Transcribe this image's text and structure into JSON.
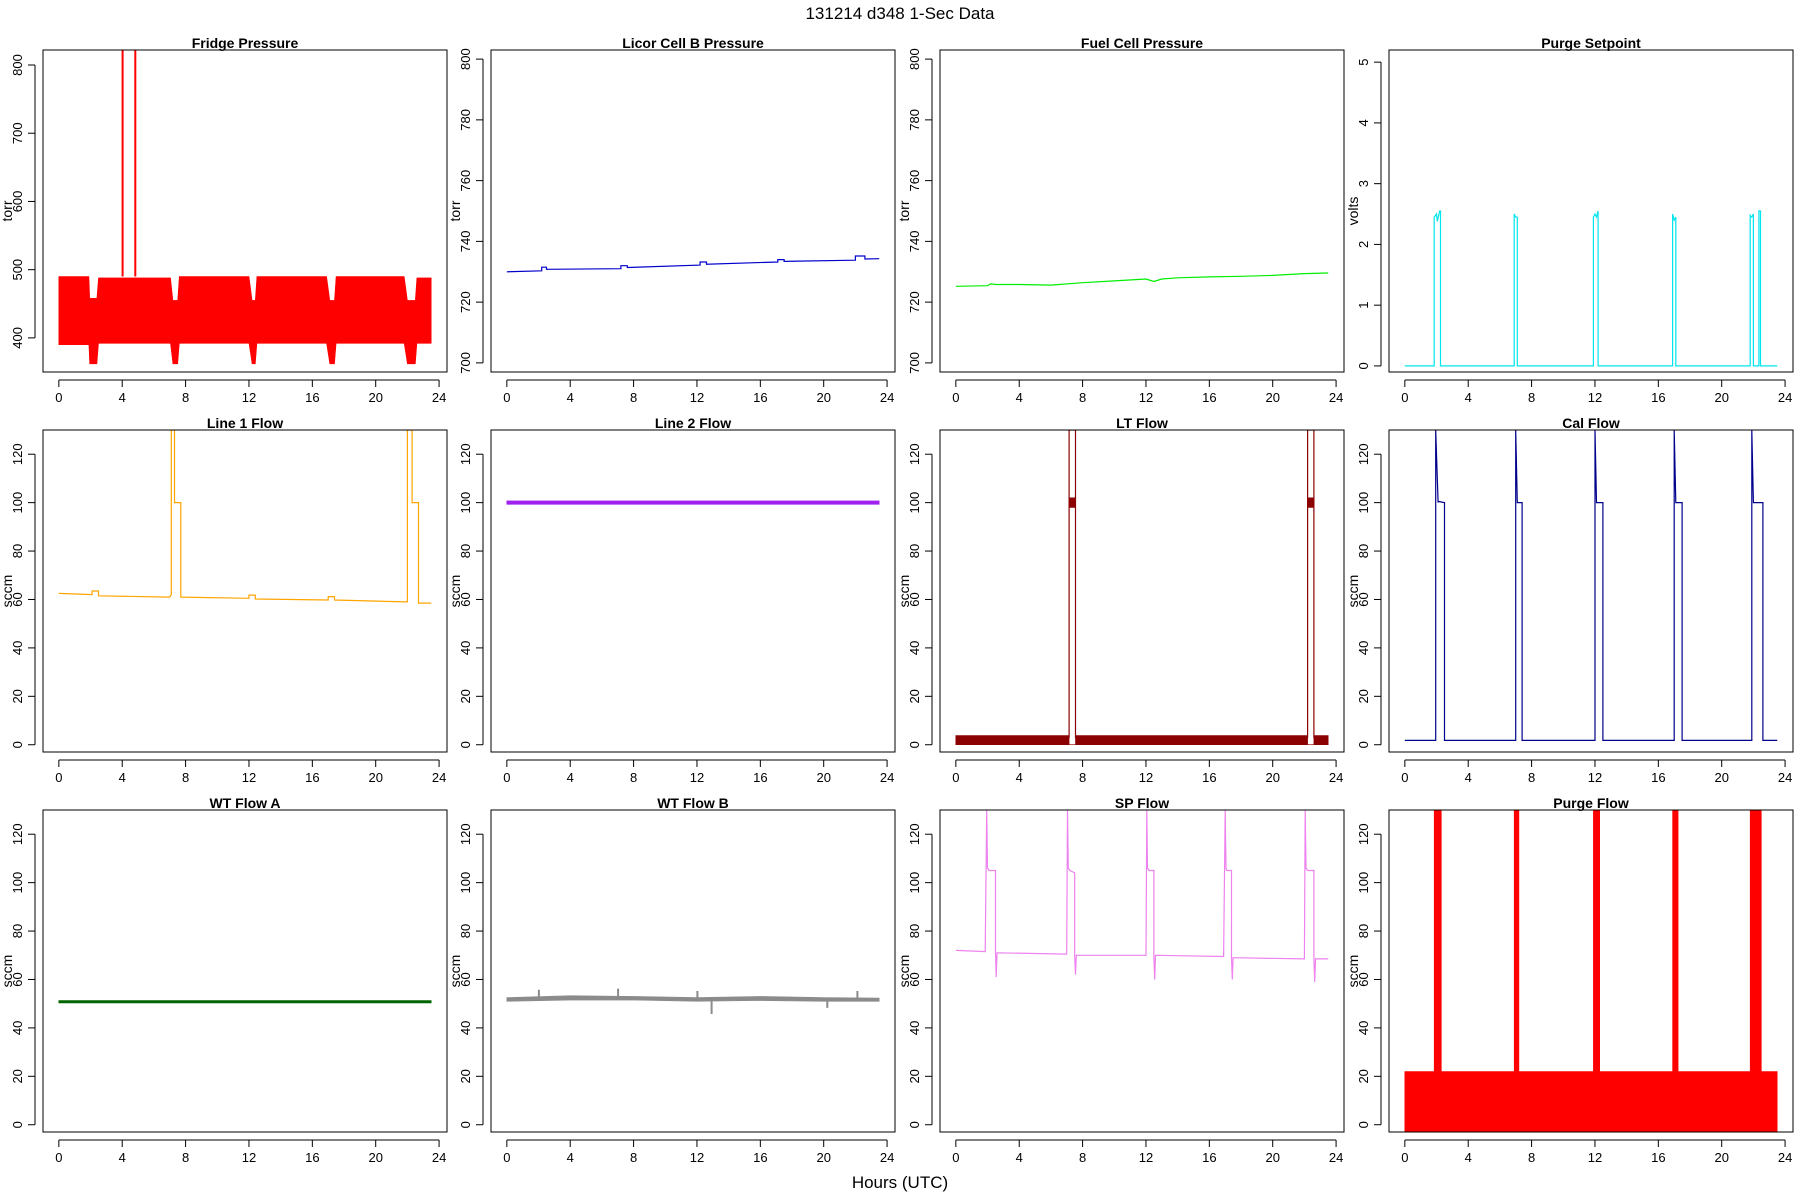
{
  "figure": {
    "title": "131214   d348   1-Sec Data",
    "xlabel": "Hours (UTC)"
  },
  "chart_data": [
    {
      "type": "line",
      "title": "Fridge Pressure",
      "ylabel": "torr",
      "color": "#ff0000",
      "xlim": [
        -1,
        24.5
      ],
      "ylim": [
        350,
        822
      ],
      "xticks": [
        0,
        4,
        8,
        12,
        16,
        20,
        24
      ],
      "yticks": [
        400,
        500,
        600,
        700,
        800
      ],
      "series": [
        {
          "style": "band",
          "x": [
            0.0,
            1.9,
            1.95,
            2.4,
            2.5,
            7.05,
            7.2,
            7.5,
            7.6,
            12.0,
            12.2,
            12.4,
            12.5,
            16.9,
            17.1,
            17.4,
            17.5,
            21.8,
            22.0,
            22.5,
            22.6,
            23.5
          ],
          "low": [
            390,
            390,
            362,
            362,
            392,
            392,
            362,
            362,
            392,
            392,
            362,
            362,
            392,
            392,
            362,
            362,
            392,
            392,
            362,
            362,
            392,
            392
          ],
          "high": [
            490,
            490,
            458,
            458,
            488,
            488,
            455,
            455,
            490,
            490,
            455,
            455,
            490,
            490,
            455,
            455,
            490,
            490,
            455,
            455,
            488,
            488
          ]
        },
        {
          "style": "line",
          "x": [
            4.0,
            4.0,
            4.05,
            4.05
          ],
          "y": [
            490,
            830,
            830,
            490
          ]
        },
        {
          "style": "line",
          "x": [
            4.8,
            4.8,
            4.85,
            4.85
          ],
          "y": [
            490,
            828,
            828,
            490
          ]
        }
      ]
    },
    {
      "type": "line",
      "title": "Licor Cell B Pressure",
      "ylabel": "torr",
      "color": "#0000cd",
      "xlim": [
        -1,
        24.5
      ],
      "ylim": [
        697,
        803
      ],
      "xticks": [
        0,
        4,
        8,
        12,
        16,
        20,
        24
      ],
      "yticks": [
        700,
        720,
        740,
        760,
        780,
        800
      ],
      "series": [
        {
          "style": "line",
          "x": [
            0,
            2.2,
            2.2,
            2.5,
            2.5,
            7.2,
            7.2,
            7.6,
            7.6,
            12.2,
            12.2,
            12.6,
            12.6,
            17.1,
            17.1,
            17.5,
            17.5,
            22.0,
            22.0,
            22.6,
            22.6,
            23.5
          ],
          "y": [
            730,
            730.3,
            731.5,
            731.5,
            730.8,
            731.0,
            732.0,
            732.0,
            731.4,
            732.2,
            733.2,
            733.2,
            732.5,
            733.2,
            734.0,
            734.0,
            733.4,
            733.8,
            735.2,
            735.2,
            734.2,
            734.3
          ]
        }
      ]
    },
    {
      "type": "line",
      "title": "Fuel Cell Pressure",
      "ylabel": "torr",
      "color": "#00ee00",
      "xlim": [
        -1,
        24.5
      ],
      "ylim": [
        697,
        803
      ],
      "xticks": [
        0,
        4,
        8,
        12,
        16,
        20,
        24
      ],
      "yticks": [
        700,
        720,
        740,
        760,
        780,
        800
      ],
      "series": [
        {
          "style": "line",
          "x": [
            0,
            2,
            2.2,
            2.5,
            4,
            6,
            8,
            10,
            12,
            12.5,
            13,
            14,
            16,
            18,
            20,
            22,
            23.5
          ],
          "y": [
            725.2,
            725.4,
            726.0,
            725.8,
            725.8,
            725.6,
            726.4,
            727.0,
            727.6,
            726.8,
            727.6,
            728.0,
            728.3,
            728.5,
            728.8,
            729.4,
            729.6
          ]
        }
      ]
    },
    {
      "type": "line",
      "title": "Purge Setpoint",
      "ylabel": "volts",
      "color": "#00e5ee",
      "xlim": [
        -1,
        24.5
      ],
      "ylim": [
        -0.1,
        5.2
      ],
      "xticks": [
        0,
        4,
        8,
        12,
        16,
        20,
        24
      ],
      "yticks": [
        0,
        1,
        2,
        3,
        4,
        5
      ],
      "series": [
        {
          "style": "line",
          "x": [
            0,
            1.85,
            1.85,
            2.0,
            2.05,
            2.2,
            2.25,
            2.25,
            6.9,
            6.9,
            7.0,
            7.1,
            7.1,
            11.9,
            11.9,
            12.0,
            12.1,
            12.2,
            12.2,
            16.9,
            16.9,
            17.0,
            17.1,
            17.1,
            21.8,
            21.8,
            21.9,
            22.0,
            22.0,
            22.35,
            22.35,
            22.45,
            22.45,
            23.5
          ],
          "y": [
            0,
            0,
            2.45,
            2.5,
            2.38,
            2.55,
            2.55,
            0,
            0,
            2.5,
            2.45,
            2.45,
            0,
            0,
            2.45,
            2.5,
            2.45,
            2.55,
            0,
            0,
            2.5,
            2.4,
            2.45,
            0,
            0,
            2.48,
            2.45,
            2.5,
            0,
            0,
            2.55,
            2.55,
            0,
            0
          ]
        }
      ]
    },
    {
      "type": "line",
      "title": "Line 1 Flow",
      "ylabel": "sccm",
      "color": "#ffa500",
      "xlim": [
        -1,
        24.5
      ],
      "ylim": [
        -3,
        130
      ],
      "xticks": [
        0,
        4,
        8,
        12,
        16,
        20,
        24
      ],
      "yticks": [
        0,
        20,
        40,
        60,
        80,
        100,
        120
      ],
      "series": [
        {
          "style": "line",
          "x": [
            0,
            2.1,
            2.1,
            2.5,
            2.5,
            7.0,
            7.1,
            7.1,
            7.3,
            7.3,
            7.7,
            7.7,
            12.0,
            12.0,
            12.4,
            12.4,
            17.0,
            17.0,
            17.4,
            17.4,
            21.9,
            22.0,
            22.0,
            22.3,
            22.3,
            22.7,
            22.7,
            23.5
          ],
          "y": [
            62.5,
            62.0,
            63.5,
            63.5,
            61.5,
            61.0,
            62.0,
            130,
            130,
            100,
            100,
            61.0,
            60.5,
            61.8,
            61.8,
            60.2,
            59.8,
            61.2,
            61.2,
            59.8,
            59.0,
            59.0,
            130,
            130,
            100,
            100,
            58.5,
            58.5
          ]
        }
      ]
    },
    {
      "type": "line",
      "title": "Line 2 Flow",
      "ylabel": "sccm",
      "color": "#a020f0",
      "xlim": [
        -1,
        24.5
      ],
      "ylim": [
        -3,
        130
      ],
      "xticks": [
        0,
        4,
        8,
        12,
        16,
        20,
        24
      ],
      "yticks": [
        0,
        20,
        40,
        60,
        80,
        100,
        120
      ],
      "series": [
        {
          "style": "band",
          "x": [
            0,
            23.5
          ],
          "low": [
            99.3,
            99.3
          ],
          "high": [
            100.7,
            100.7
          ]
        }
      ]
    },
    {
      "type": "line",
      "title": "LT Flow",
      "ylabel": "sccm",
      "color": "#8b0000",
      "xlim": [
        -1,
        24.5
      ],
      "ylim": [
        -3,
        130
      ],
      "xticks": [
        0,
        4,
        8,
        12,
        16,
        20,
        24
      ],
      "yticks": [
        0,
        20,
        40,
        60,
        80,
        100,
        120
      ],
      "series": [
        {
          "style": "band",
          "x": [
            0,
            7.15,
            7.15,
            7.55,
            7.55,
            22.2,
            22.2,
            22.6,
            22.6,
            23.5
          ],
          "low": [
            0,
            0,
            0,
            0,
            0,
            0,
            0,
            0,
            0,
            0
          ],
          "high": [
            3.8,
            3.8,
            0,
            0,
            3.8,
            3.8,
            0,
            0,
            3.8,
            3.8
          ]
        },
        {
          "style": "band",
          "x": [
            7.15,
            7.55
          ],
          "low": [
            98,
            98
          ],
          "high": [
            102,
            102
          ]
        },
        {
          "style": "band",
          "x": [
            22.2,
            22.6
          ],
          "low": [
            98,
            98
          ],
          "high": [
            102,
            102
          ]
        },
        {
          "style": "line",
          "x": [
            7.1,
            7.15,
            7.15,
            7.55,
            7.55,
            7.6
          ],
          "y": [
            3,
            3,
            130,
            130,
            3,
            3
          ]
        },
        {
          "style": "line",
          "x": [
            22.15,
            22.2,
            22.2,
            22.6,
            22.6,
            22.65
          ],
          "y": [
            3,
            3,
            130,
            130,
            3,
            3
          ]
        }
      ]
    },
    {
      "type": "line",
      "title": "Cal Flow",
      "ylabel": "sccm",
      "color": "#00008b",
      "xlim": [
        -1,
        24.5
      ],
      "ylim": [
        -3,
        130
      ],
      "xticks": [
        0,
        4,
        8,
        12,
        16,
        20,
        24
      ],
      "yticks": [
        0,
        20,
        40,
        60,
        80,
        100,
        120
      ],
      "series": [
        {
          "style": "line",
          "x": [
            0,
            1.95,
            1.95,
            2.1,
            2.1,
            2.5,
            2.5,
            7.0,
            7.0,
            7.1,
            7.4,
            7.4,
            12.0,
            12.0,
            12.1,
            12.5,
            12.5,
            17.0,
            17.0,
            17.1,
            17.5,
            17.5,
            21.9,
            21.9,
            22.0,
            22.3,
            22.3,
            22.6,
            22.6,
            23.5
          ],
          "y": [
            1.8,
            1.8,
            130,
            100,
            100.5,
            100,
            1.8,
            1.8,
            130,
            100,
            100,
            1.8,
            1.8,
            130,
            100,
            100,
            1.8,
            1.8,
            130,
            100,
            100,
            1.8,
            1.8,
            130,
            100,
            100,
            100,
            100,
            1.8,
            1.8
          ]
        }
      ]
    },
    {
      "type": "line",
      "title": "WT Flow A",
      "ylabel": "sccm",
      "color": "#006400",
      "xlim": [
        -1,
        24.5
      ],
      "ylim": [
        -3,
        130
      ],
      "xticks": [
        0,
        4,
        8,
        12,
        16,
        20,
        24
      ],
      "yticks": [
        0,
        20,
        40,
        60,
        80,
        100,
        120
      ],
      "series": [
        {
          "style": "band",
          "x": [
            0,
            23.5
          ],
          "low": [
            50.3,
            50.3
          ],
          "high": [
            51.3,
            51.3
          ]
        }
      ]
    },
    {
      "type": "line",
      "title": "WT Flow B",
      "ylabel": "sccm",
      "color": "#8b8b8b",
      "xlim": [
        -1,
        24.5
      ],
      "ylim": [
        -3,
        130
      ],
      "xticks": [
        0,
        4,
        8,
        12,
        16,
        20,
        24
      ],
      "yticks": [
        0,
        20,
        40,
        60,
        80,
        100,
        120
      ],
      "series": [
        {
          "style": "band",
          "x": [
            0,
            4,
            8,
            12,
            16,
            20,
            23.5
          ],
          "low": [
            51.0,
            51.5,
            51.5,
            51.0,
            51.3,
            51.0,
            51.0
          ],
          "high": [
            52.5,
            53.3,
            53.0,
            52.5,
            53.0,
            52.5,
            52.3
          ]
        },
        {
          "style": "line",
          "x": [
            2.0,
            2.0,
            2.05,
            2.05
          ],
          "y": [
            52,
            55.5,
            55.5,
            52
          ]
        },
        {
          "style": "line",
          "x": [
            7.0,
            7.0,
            7.05,
            7.05
          ],
          "y": [
            52,
            56,
            56,
            52
          ]
        },
        {
          "style": "line",
          "x": [
            12.0,
            12.0,
            12.05,
            12.05
          ],
          "y": [
            52,
            55,
            55,
            52
          ]
        },
        {
          "style": "line",
          "x": [
            12.9,
            12.9,
            12.95,
            12.95
          ],
          "y": [
            51,
            46,
            46,
            51
          ]
        },
        {
          "style": "line",
          "x": [
            20.2,
            20.2,
            20.25,
            20.25
          ],
          "y": [
            51,
            48.5,
            48.5,
            51
          ]
        },
        {
          "style": "line",
          "x": [
            22.1,
            22.1,
            22.15,
            22.15
          ],
          "y": [
            52,
            55,
            55,
            52
          ]
        }
      ]
    },
    {
      "type": "line",
      "title": "SP Flow",
      "ylabel": "sccm",
      "color": "#ee82ee",
      "xlim": [
        -1,
        24.5
      ],
      "ylim": [
        -3,
        130
      ],
      "xticks": [
        0,
        4,
        8,
        12,
        16,
        20,
        24
      ],
      "yticks": [
        0,
        20,
        40,
        60,
        80,
        100,
        120
      ],
      "series": [
        {
          "style": "line",
          "x": [
            0,
            1.85,
            1.95,
            2.0,
            2.1,
            2.5,
            2.5,
            2.55,
            2.6,
            7.0,
            7.05,
            7.1,
            7.2,
            7.5,
            7.5,
            7.55,
            7.6,
            12.0,
            12.05,
            12.1,
            12.2,
            12.5,
            12.5,
            12.55,
            12.6,
            16.9,
            17.0,
            17.05,
            17.1,
            17.4,
            17.4,
            17.45,
            17.5,
            22.0,
            22.05,
            22.1,
            22.2,
            22.6,
            22.6,
            22.65,
            22.7,
            23.5
          ],
          "y": [
            72,
            71.5,
            130,
            106,
            105,
            105,
            71,
            61,
            71,
            70.5,
            130,
            106,
            105,
            104,
            69.5,
            62,
            70,
            70,
            130,
            106,
            105,
            105,
            69,
            60,
            70,
            69.5,
            130,
            106,
            105,
            105,
            69,
            60,
            69,
            68.5,
            130,
            106,
            105,
            105,
            68.5,
            59,
            68.5,
            68.5
          ]
        }
      ]
    },
    {
      "type": "line",
      "title": "Purge Flow",
      "ylabel": "sccm",
      "color": "#ff0000",
      "xlim": [
        -1,
        24.5
      ],
      "ylim": [
        -3,
        130
      ],
      "xticks": [
        0,
        4,
        8,
        12,
        16,
        20,
        24
      ],
      "yticks": [
        0,
        20,
        40,
        60,
        80,
        100,
        120
      ],
      "series": [
        {
          "style": "band",
          "x": [
            0,
            23.5
          ],
          "low": [
            -3,
            -3
          ],
          "high": [
            22,
            22
          ]
        },
        {
          "style": "band",
          "x": [
            1.85,
            2.3
          ],
          "low": [
            -3,
            -3
          ],
          "high": [
            130,
            130
          ]
        },
        {
          "style": "band",
          "x": [
            6.9,
            7.2
          ],
          "low": [
            -3,
            -3
          ],
          "high": [
            130,
            130
          ]
        },
        {
          "style": "band",
          "x": [
            11.9,
            12.3
          ],
          "low": [
            -3,
            -3
          ],
          "high": [
            130,
            130
          ]
        },
        {
          "style": "band",
          "x": [
            16.9,
            17.25
          ],
          "low": [
            -3,
            -3
          ],
          "high": [
            130,
            130
          ]
        },
        {
          "style": "band",
          "x": [
            21.8,
            22.5
          ],
          "low": [
            -3,
            -3
          ],
          "high": [
            130,
            130
          ]
        }
      ]
    }
  ]
}
